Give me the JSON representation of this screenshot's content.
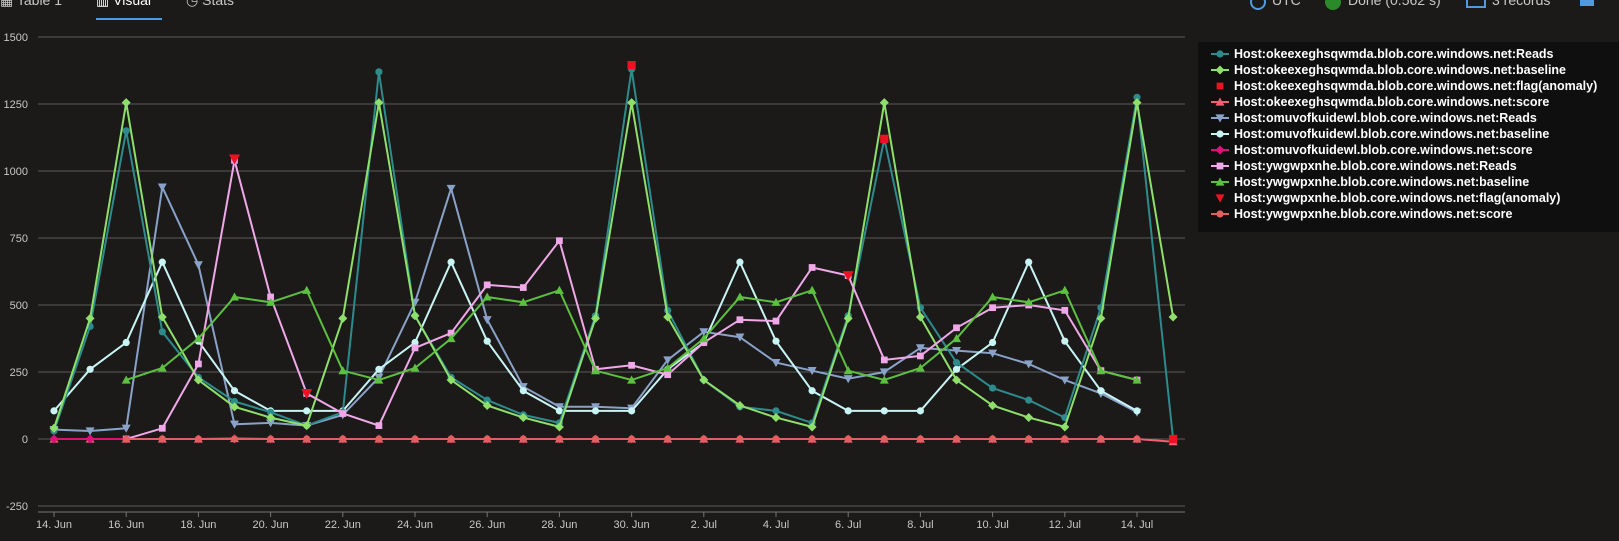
{
  "tabs": [
    {
      "label": "Table 1"
    },
    {
      "label": "Visual"
    },
    {
      "label": "Stats"
    }
  ],
  "status": {
    "timezone": "UTC",
    "done": "Done (0.562 s)",
    "records": "3 records"
  },
  "chart_data": {
    "type": "line",
    "ylim": [
      -250,
      1500
    ],
    "yticks": [
      -250,
      0,
      250,
      500,
      750,
      1000,
      1250,
      1500
    ],
    "xlabels": [
      "14. Jun",
      "16. Jun",
      "18. Jun",
      "20. Jun",
      "22. Jun",
      "24. Jun",
      "26. Jun",
      "28. Jun",
      "30. Jun",
      "2. Jul",
      "4. Jul",
      "6. Jul",
      "8. Jul",
      "10. Jul",
      "12. Jul",
      "14. Jul"
    ],
    "x": [
      "14. Jun",
      "15. Jun",
      "16. Jun",
      "17. Jun",
      "18. Jun",
      "19. Jun",
      "20. Jun",
      "21. Jun",
      "22. Jun",
      "23. Jun",
      "24. Jun",
      "25. Jun",
      "26. Jun",
      "27. Jun",
      "28. Jun",
      "29. Jun",
      "30. Jun",
      "1. Jul",
      "2. Jul",
      "3. Jul",
      "4. Jul",
      "5. Jul",
      "6. Jul",
      "7. Jul",
      "8. Jul",
      "9. Jul",
      "10. Jul",
      "11. Jul",
      "12. Jul",
      "13. Jul",
      "14. Jul",
      "15. Jul"
    ],
    "series": [
      {
        "name": "Host:okeexeghsqwmda.blob.core.windows.net:Reads",
        "color": "#2e8b8b",
        "marker": "circle",
        "values": [
          30,
          420,
          1150,
          400,
          230,
          140,
          100,
          50,
          100,
          1370,
          460,
          230,
          145,
          90,
          60,
          460,
          1380,
          480,
          220,
          120,
          105,
          60,
          460,
          1120,
          490,
          285,
          190,
          145,
          80,
          490,
          1275,
          0
        ]
      },
      {
        "name": "Host:okeexeghsqwmda.blob.core.windows.net:baseline",
        "color": "#8fe06a",
        "marker": "diamond",
        "values": [
          40,
          450,
          1255,
          455,
          220,
          120,
          80,
          50,
          450,
          1255,
          460,
          220,
          125,
          80,
          45,
          450,
          1255,
          455,
          220,
          125,
          80,
          45,
          450,
          1255,
          455,
          220,
          125,
          80,
          45,
          450,
          1255,
          455
        ]
      },
      {
        "name": "Host:okeexeghsqwmda.blob.core.windows.net:flag(anomaly)",
        "color": "#ee1122",
        "marker": "square",
        "values": [
          null,
          null,
          null,
          null,
          null,
          null,
          null,
          null,
          null,
          null,
          null,
          null,
          null,
          null,
          null,
          null,
          1395,
          null,
          null,
          null,
          null,
          null,
          null,
          1120,
          null,
          null,
          null,
          null,
          null,
          null,
          null,
          0
        ]
      },
      {
        "name": "Host:okeexeghsqwmda.blob.core.windows.net:score",
        "color": "#f06070",
        "marker": "triangle",
        "values": [
          0,
          0,
          0,
          0,
          0,
          2,
          0,
          0,
          0,
          0,
          0,
          0,
          0,
          0,
          0,
          0,
          0,
          0,
          0,
          0,
          0,
          0,
          0,
          0,
          0,
          0,
          0,
          0,
          0,
          0,
          0,
          -10
        ]
      },
      {
        "name": "Host:omuvofkuidewl.blob.core.windows.net:Reads",
        "color": "#8aa2c8",
        "marker": "triangle-down",
        "values": [
          35,
          30,
          40,
          940,
          650,
          55,
          60,
          50,
          90,
          230,
          510,
          935,
          445,
          195,
          120,
          120,
          115,
          295,
          400,
          380,
          285,
          255,
          225,
          250,
          340,
          330,
          320,
          280,
          220,
          170,
          100,
          null
        ]
      },
      {
        "name": "Host:omuvofkuidewl.blob.core.windows.net:baseline",
        "color": "#c8f4f4",
        "marker": "circle",
        "values": [
          105,
          260,
          360,
          660,
          365,
          180,
          105,
          105,
          105,
          260,
          360,
          660,
          365,
          180,
          105,
          105,
          105,
          260,
          360,
          660,
          365,
          180,
          105,
          105,
          105,
          260,
          360,
          660,
          365,
          180,
          105,
          null
        ]
      },
      {
        "name": "Host:omuvofkuidewl.blob.core.windows.net:score",
        "color": "#e0107a",
        "marker": "diamond",
        "values": [
          0,
          0,
          0,
          0,
          0,
          0,
          0,
          0,
          0,
          0,
          0,
          0,
          0,
          0,
          0,
          0,
          0,
          0,
          0,
          0,
          0,
          0,
          0,
          0,
          0,
          0,
          0,
          0,
          0,
          0,
          0,
          null
        ]
      },
      {
        "name": "Host:ywgwpxnhe.blob.core.windows.net:Reads",
        "color": "#f0a8e8",
        "marker": "square",
        "values": [
          null,
          null,
          0,
          40,
          280,
          1040,
          530,
          170,
          95,
          50,
          340,
          395,
          575,
          565,
          740,
          260,
          275,
          240,
          360,
          445,
          440,
          640,
          610,
          295,
          310,
          415,
          490,
          500,
          480,
          255,
          220,
          null
        ]
      },
      {
        "name": "Host:ywgwpxnhe.blob.core.windows.net:baseline",
        "color": "#5dc040",
        "marker": "triangle",
        "values": [
          null,
          null,
          220,
          265,
          375,
          530,
          510,
          555,
          255,
          220,
          265,
          375,
          530,
          510,
          555,
          255,
          220,
          265,
          375,
          530,
          510,
          555,
          255,
          220,
          265,
          375,
          530,
          510,
          555,
          255,
          220,
          null
        ]
      },
      {
        "name": "Host:ywgwpxnhe.blob.core.windows.net:flag(anomaly)",
        "color": "#ee1122",
        "marker": "triangle-down",
        "values": [
          null,
          null,
          null,
          null,
          null,
          1045,
          null,
          170,
          null,
          null,
          null,
          null,
          null,
          null,
          null,
          null,
          null,
          null,
          null,
          null,
          null,
          null,
          610,
          null,
          null,
          null,
          null,
          null,
          null,
          null,
          null,
          null
        ]
      },
      {
        "name": "Host:ywgwpxnhe.blob.core.windows.net:score",
        "color": "#e06060",
        "marker": "circle",
        "values": [
          null,
          null,
          0,
          0,
          0,
          0,
          0,
          0,
          0,
          0,
          0,
          0,
          0,
          0,
          0,
          0,
          0,
          0,
          0,
          0,
          0,
          0,
          0,
          0,
          0,
          0,
          0,
          0,
          0,
          0,
          0,
          null
        ]
      }
    ]
  }
}
